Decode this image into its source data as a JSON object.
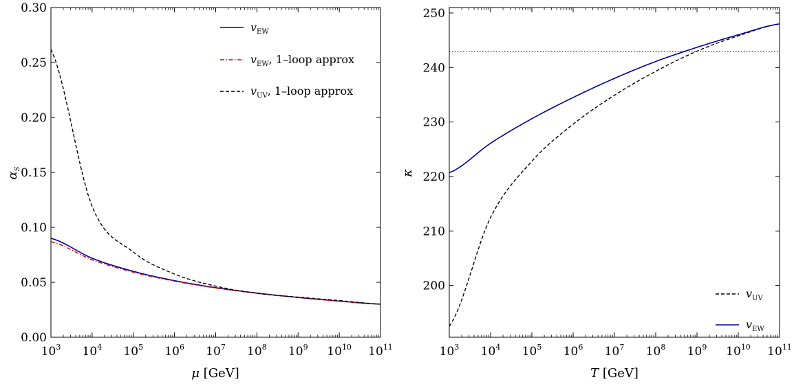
{
  "chart_data": [
    {
      "type": "line",
      "xscale": "log",
      "xlim": [
        1000,
        100000000000
      ],
      "ylim": [
        0,
        0.3
      ],
      "xlabel": {
        "sym": "μ",
        "unit": "[GeV]"
      },
      "ylabel": {
        "sym": "α",
        "sub": "S"
      },
      "yticks": [
        "0.00",
        "0.05",
        "0.10",
        "0.15",
        "0.20",
        "0.25",
        "0.30"
      ],
      "xticks": [
        {
          "base": "10",
          "exp": "3"
        },
        {
          "base": "10",
          "exp": "4"
        },
        {
          "base": "10",
          "exp": "5"
        },
        {
          "base": "10",
          "exp": "6"
        },
        {
          "base": "10",
          "exp": "7"
        },
        {
          "base": "10",
          "exp": "8"
        },
        {
          "base": "10",
          "exp": "9"
        },
        {
          "base": "10",
          "exp": "10"
        },
        {
          "base": "10",
          "exp": "11"
        }
      ],
      "legend_position": "top-right",
      "series": [
        {
          "name": {
            "sym": "v",
            "sub": "EW",
            "rest": ""
          },
          "color": "#00009e",
          "dash": "solid",
          "x": [
            1000,
            10000,
            100000,
            1000000,
            10000000,
            100000000,
            1000000000,
            10000000000,
            100000000000
          ],
          "y": [
            0.09,
            0.0719,
            0.06,
            0.0515,
            0.0451,
            0.0402,
            0.0362,
            0.0329,
            0.0301
          ]
        },
        {
          "name": {
            "sym": "v",
            "sub": "EW",
            "rest": ", 1–loop approx"
          },
          "color": "#cc0000",
          "dash": "dashdot",
          "x": [
            1000,
            10000,
            100000,
            1000000,
            10000000,
            100000000,
            1000000000,
            10000000000,
            100000000000
          ],
          "y": [
            0.087,
            0.0705,
            0.0592,
            0.051,
            0.0448,
            0.04,
            0.0361,
            0.0328,
            0.0301
          ]
        },
        {
          "name": {
            "sym": "v",
            "sub": "UV",
            "rest": ", 1–loop approx"
          },
          "color": "#000000",
          "dash": "dashed",
          "x": [
            1000,
            10000,
            100000,
            1000000,
            10000000,
            100000000,
            1000000000,
            10000000000,
            100000000000
          ],
          "y": [
            0.262,
            0.119,
            0.0775,
            0.0575,
            0.0465,
            0.04,
            0.0365,
            0.0334,
            0.0301
          ]
        }
      ]
    },
    {
      "type": "line",
      "xscale": "log",
      "xlim": [
        1000,
        100000000000
      ],
      "ylim": [
        190.5,
        251
      ],
      "xlabel": {
        "sym": "T",
        "unit": "[GeV]"
      },
      "ylabel": {
        "sym": "κ",
        "sub": ""
      },
      "yticks": [
        "200",
        "210",
        "220",
        "230",
        "240",
        "250"
      ],
      "xticks": [
        {
          "base": "10",
          "exp": "3"
        },
        {
          "base": "10",
          "exp": "4"
        },
        {
          "base": "10",
          "exp": "5"
        },
        {
          "base": "10",
          "exp": "6"
        },
        {
          "base": "10",
          "exp": "7"
        },
        {
          "base": "10",
          "exp": "8"
        },
        {
          "base": "10",
          "exp": "9"
        },
        {
          "base": "10",
          "exp": "10"
        },
        {
          "base": "10",
          "exp": "11"
        }
      ],
      "hline": {
        "y": 243,
        "color": "#000000",
        "dash": "dotted"
      },
      "legend_position": "bottom-right",
      "series": [
        {
          "name": {
            "sym": "v",
            "sub": "UV",
            "rest": ""
          },
          "color": "#000000",
          "dash": "dashed",
          "x": [
            1000,
            10000,
            100000,
            1000000,
            10000000,
            100000000,
            1000000000,
            10000000000,
            100000000000
          ],
          "y": [
            192.5,
            212.5,
            222.8,
            229.6,
            234.9,
            239.3,
            243.0,
            245.8,
            248.0
          ]
        },
        {
          "name": {
            "sym": "v",
            "sub": "EW",
            "rest": ""
          },
          "color": "#00009e",
          "dash": "solid",
          "x": [
            1000,
            10000,
            100000,
            1000000,
            10000000,
            100000000,
            1000000000,
            10000000000,
            100000000000
          ],
          "y": [
            220.7,
            226.1,
            230.6,
            234.5,
            238.0,
            241.1,
            243.7,
            246.0,
            248.0
          ]
        }
      ]
    }
  ]
}
